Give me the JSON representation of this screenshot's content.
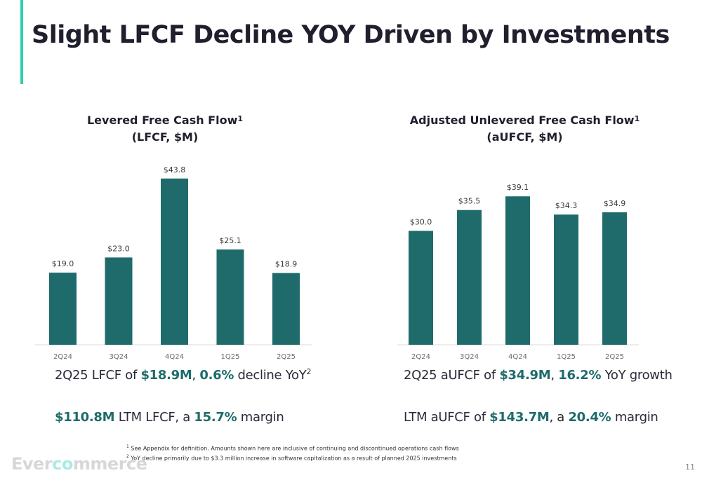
{
  "title": "Slight LFCF Decline YOY Driven by Investments",
  "colors": {
    "accent": "#2fd0a8",
    "bar": "#1f6b6b",
    "highlight": "#1f6b6b"
  },
  "chart_data": [
    {
      "type": "bar",
      "title": "Levered Free Cash Flow",
      "title_sup": "1",
      "subtitle": "(LFCF, $M)",
      "categories": [
        "2Q24",
        "3Q24",
        "4Q24",
        "1Q25",
        "2Q25"
      ],
      "values": [
        19.0,
        23.0,
        43.8,
        25.1,
        18.9
      ],
      "labels": [
        "$19.0",
        "$23.0",
        "$43.8",
        "$25.1",
        "$18.9"
      ],
      "ylim": [
        0,
        48
      ],
      "grid": false,
      "legend": "none"
    },
    {
      "type": "bar",
      "title": "Adjusted Unlevered Free Cash Flow",
      "title_sup": "1",
      "subtitle": "(aUFCF, $M)",
      "categories": [
        "2Q24",
        "3Q24",
        "4Q24",
        "1Q25",
        "2Q25"
      ],
      "values": [
        30.0,
        35.5,
        39.1,
        34.3,
        34.9
      ],
      "labels": [
        "$30.0",
        "$35.5",
        "$39.1",
        "$34.3",
        "$34.9"
      ],
      "ylim": [
        0,
        48
      ],
      "grid": false,
      "legend": "none"
    }
  ],
  "left_stats": {
    "line1": {
      "pre": "2Q25 LFCF of ",
      "v1": "$18.9M",
      "mid": ", ",
      "v2": "0.6%",
      "post": " decline YoY",
      "sup": "2"
    },
    "line2": {
      "v1": "$110.8M",
      "mid": " LTM LFCF, a ",
      "v2": "15.7%",
      "post": " margin"
    }
  },
  "right_stats": {
    "line1": {
      "pre": "2Q25 aUFCF of ",
      "v1": "$34.9M",
      "mid": ", ",
      "v2": "16.2%",
      "post": " YoY growth"
    },
    "line2": {
      "pre": "LTM aUFCF of ",
      "v1": "$143.7M",
      "mid": ", a ",
      "v2": "20.4%",
      "post": " margin"
    }
  },
  "footnotes": [
    {
      "num": "1",
      "text": "See Appendix for definition. Amounts shown here are inclusive of continuing and discontinued operations cash flows"
    },
    {
      "num": "2",
      "text": "YoY decline primarily due to $3.3 million increase in software capitalization as a result of planned 2025 investments"
    }
  ],
  "logo": {
    "part1": "Ever",
    "part2": "co",
    "part3": "mmerce"
  },
  "page_number": "11"
}
